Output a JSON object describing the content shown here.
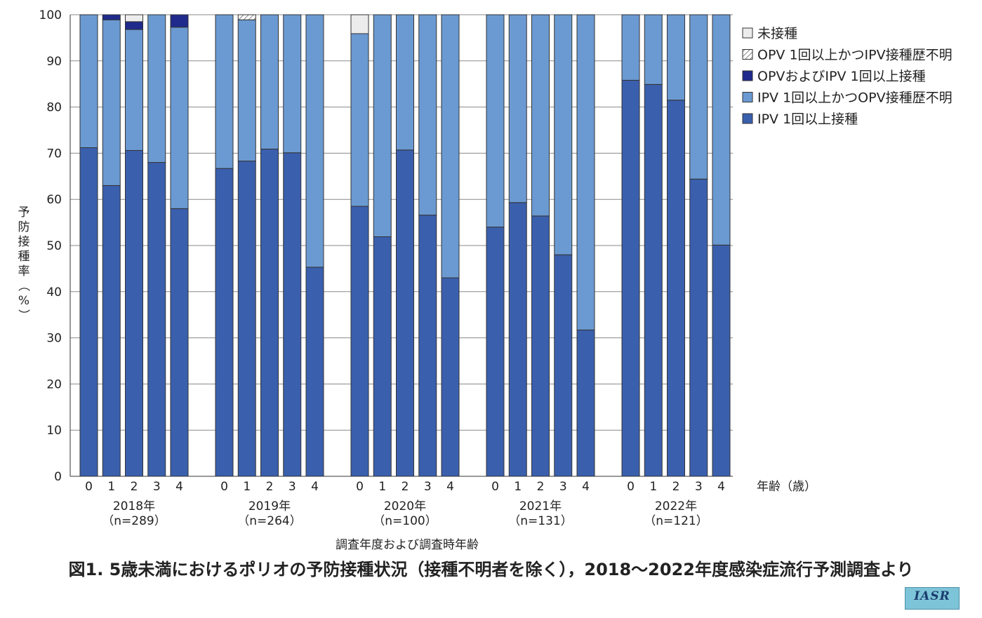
{
  "chart_data": {
    "type": "bar",
    "stacked": true,
    "ylabel": "予防接種率（%）",
    "xlabel": "調査年度および調査時年齢",
    "age_unit_label": "年齢（歳）",
    "ylim": [
      0,
      100
    ],
    "yticks": [
      0,
      10,
      20,
      30,
      40,
      50,
      60,
      70,
      80,
      90,
      100
    ],
    "grid": true,
    "legend_position": "top-right",
    "colors": {
      "IPV 1回以上接種": "#3a5fad",
      "IPV 1回以上かつOPV接種歴不明": "#6b9ad2",
      "OPVおよびIPV 1回以上接種": "#1f2a8c",
      "OPV 1回以上かつIPV接種歴不明": "#ffffff",
      "未接種": "#ececec"
    },
    "legend": [
      {
        "name": "未接種",
        "pattern": "solid",
        "color": "#ececec"
      },
      {
        "name": "OPV 1回以上かつIPV接種歴不明",
        "pattern": "hatch",
        "color": "#ffffff"
      },
      {
        "name": "OPVおよびIPV 1回以上接種",
        "pattern": "solid",
        "color": "#1f2a8c"
      },
      {
        "name": "IPV 1回以上かつOPV接種歴不明",
        "pattern": "solid",
        "color": "#6b9ad2"
      },
      {
        "name": "IPV 1回以上接種",
        "pattern": "solid",
        "color": "#3a5fad"
      }
    ],
    "groups": [
      {
        "year": "2018年",
        "n": "（n=289）",
        "ages": [
          "0",
          "1",
          "2",
          "3",
          "4"
        ],
        "series": {
          "IPV 1回以上接種": [
            71.2,
            63.0,
            70.6,
            68.0,
            58.0
          ],
          "IPV 1回以上かつOPV接種歴不明": [
            28.8,
            35.9,
            26.2,
            32.0,
            39.3
          ],
          "OPVおよびIPV 1回以上接種": [
            0,
            1.1,
            1.7,
            0,
            2.7
          ],
          "OPV 1回以上かつIPV接種歴不明": [
            0,
            0,
            0,
            0,
            0
          ],
          "未接種": [
            0,
            0,
            1.5,
            0,
            0
          ]
        }
      },
      {
        "year": "2019年",
        "n": "（n=264）",
        "ages": [
          "0",
          "1",
          "2",
          "3",
          "4"
        ],
        "series": {
          "IPV 1回以上接種": [
            66.7,
            68.3,
            70.9,
            70.1,
            45.3
          ],
          "IPV 1回以上かつOPV接種歴不明": [
            33.3,
            30.6,
            29.1,
            29.9,
            54.7
          ],
          "OPVおよびIPV 1回以上接種": [
            0,
            0,
            0,
            0,
            0
          ],
          "OPV 1回以上かつIPV接種歴不明": [
            0,
            1.1,
            0,
            0,
            0
          ],
          "未接種": [
            0,
            0,
            0,
            0,
            0
          ]
        }
      },
      {
        "year": "2020年",
        "n": "（n=100）",
        "ages": [
          "0",
          "1",
          "2",
          "3",
          "4"
        ],
        "series": {
          "IPV 1回以上接種": [
            58.5,
            51.9,
            70.7,
            56.6,
            43.0
          ],
          "IPV 1回以上かつOPV接種歴不明": [
            37.4,
            48.1,
            29.3,
            43.4,
            57.0
          ],
          "OPVおよびIPV 1回以上接種": [
            0,
            0,
            0,
            0,
            0
          ],
          "OPV 1回以上かつIPV接種歴不明": [
            0,
            0,
            0,
            0,
            0
          ],
          "未接種": [
            4.1,
            0,
            0,
            0,
            0
          ]
        }
      },
      {
        "year": "2021年",
        "n": "（n=131）",
        "ages": [
          "0",
          "1",
          "2",
          "3",
          "4"
        ],
        "series": {
          "IPV 1回以上接種": [
            54.0,
            59.3,
            56.4,
            48.0,
            31.7
          ],
          "IPV 1回以上かつOPV接種歴不明": [
            46.0,
            40.7,
            43.6,
            52.0,
            68.3
          ],
          "OPVおよびIPV 1回以上接種": [
            0,
            0,
            0,
            0,
            0
          ],
          "OPV 1回以上かつIPV接種歴不明": [
            0,
            0,
            0,
            0,
            0
          ],
          "未接種": [
            0,
            0,
            0,
            0,
            0
          ]
        }
      },
      {
        "year": "2022年",
        "n": "（n=121）",
        "ages": [
          "0",
          "1",
          "2",
          "3",
          "4"
        ],
        "series": {
          "IPV 1回以上接種": [
            85.8,
            84.9,
            81.5,
            64.4,
            50.1
          ],
          "IPV 1回以上かつOPV接種歴不明": [
            14.2,
            15.1,
            18.5,
            35.6,
            49.9
          ],
          "OPVおよびIPV 1回以上接種": [
            0,
            0,
            0,
            0,
            0
          ],
          "OPV 1回以上かつIPV接種歴不明": [
            0,
            0,
            0,
            0,
            0
          ],
          "未接種": [
            0,
            0,
            0,
            0,
            0
          ]
        }
      }
    ]
  },
  "caption": "図1. 5歳未満におけるポリオの予防接種状況（接種不明者を除く），2018〜2022年度感染症流行予測調査より",
  "logo_text": "IASR"
}
